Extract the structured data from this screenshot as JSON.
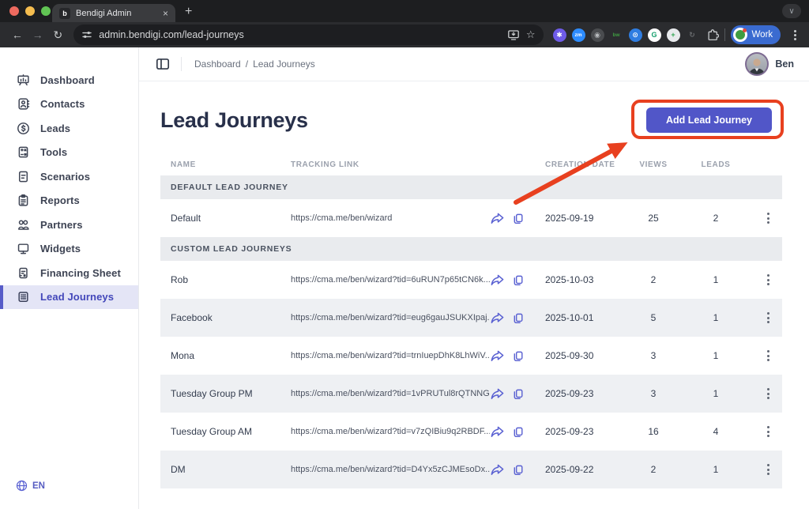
{
  "browser": {
    "tab": {
      "favicon_letter": "b",
      "title": "Bendigi Admin"
    },
    "url": "admin.bendigi.com/lead-journeys",
    "profile_label": "Work",
    "extensions": [
      {
        "name": "settings-ext-icon",
        "glyph": "✱",
        "bg": "#6e5be8",
        "fg": "#ffffff"
      },
      {
        "name": "zoom-ext-icon",
        "glyph": "zm",
        "bg": "#2d8cff",
        "fg": "#ffffff"
      },
      {
        "name": "camera-ext-icon",
        "glyph": "◉",
        "bg": "#4a4c4f",
        "fg": "#b6b9bc"
      },
      {
        "name": "bitwarden-ext-icon",
        "glyph": "bw",
        "bg": "transparent",
        "fg": "#3f9d42"
      },
      {
        "name": "onepassword-ext-icon",
        "glyph": "⊙",
        "bg": "#2f7de1",
        "fg": "#ffffff"
      },
      {
        "name": "grammarly-ext-icon",
        "glyph": "G",
        "bg": "#ffffff",
        "fg": "#15a06e"
      },
      {
        "name": "drive-folder-ext-icon",
        "glyph": "+",
        "bg": "#e8eaed",
        "fg": "#2da44e"
      },
      {
        "name": "recycle-ext-icon",
        "glyph": "↻",
        "bg": "transparent",
        "fg": "#6a6d70"
      }
    ]
  },
  "header": {
    "breadcrumb_home": "Dashboard",
    "breadcrumb_separator": "/",
    "breadcrumb_current": "Lead Journeys",
    "user_name": "Ben"
  },
  "sidebar": {
    "items": [
      {
        "label": "Dashboard",
        "icon": "dashboard-icon",
        "key": "dashboard",
        "active": false
      },
      {
        "label": "Contacts",
        "icon": "contacts-icon",
        "key": "contacts",
        "active": false
      },
      {
        "label": "Leads",
        "icon": "dollar-circle-icon",
        "key": "leads",
        "active": false
      },
      {
        "label": "Tools",
        "icon": "calculator-icon",
        "key": "tools",
        "active": false
      },
      {
        "label": "Scenarios",
        "icon": "document-icon",
        "key": "scenarios",
        "active": false
      },
      {
        "label": "Reports",
        "icon": "clipboard-icon",
        "key": "reports",
        "active": false
      },
      {
        "label": "Partners",
        "icon": "people-icon",
        "key": "partners",
        "active": false
      },
      {
        "label": "Widgets",
        "icon": "monitor-icon",
        "key": "widgets",
        "active": false
      },
      {
        "label": "Financing Sheet",
        "icon": "sheet-icon",
        "key": "financing",
        "active": false
      },
      {
        "label": "Lead Journeys",
        "icon": "list-card-icon",
        "key": "journeys",
        "active": true
      }
    ],
    "language": "EN"
  },
  "main": {
    "title": "Lead Journeys",
    "add_button_label": "Add Lead Journey"
  },
  "table": {
    "columns": [
      "NAME",
      "TRACKING LINK",
      "CREATION DATE",
      "VIEWS",
      "LEADS"
    ],
    "groups": [
      {
        "label": "DEFAULT LEAD JOURNEY",
        "rows": [
          {
            "name": "Default",
            "link": "https://cma.me/ben/wizard",
            "date": "2025-09-19",
            "views": "25",
            "leads": "2"
          }
        ]
      },
      {
        "label": "CUSTOM LEAD JOURNEYS",
        "rows": [
          {
            "name": "Rob",
            "link": "https://cma.me/ben/wizard?tid=6uRUN7p65tCN6k...",
            "date": "2025-10-03",
            "views": "2",
            "leads": "1"
          },
          {
            "name": "Facebook",
            "link": "https://cma.me/ben/wizard?tid=eug6gauJSUKXIpaj...",
            "date": "2025-10-01",
            "views": "5",
            "leads": "1"
          },
          {
            "name": "Mona",
            "link": "https://cma.me/ben/wizard?tid=trnIuepDhK8LhWiV...",
            "date": "2025-09-30",
            "views": "3",
            "leads": "1"
          },
          {
            "name": "Tuesday Group PM",
            "link": "https://cma.me/ben/wizard?tid=1vPRUTul8rQTNNG...",
            "date": "2025-09-23",
            "views": "3",
            "leads": "1"
          },
          {
            "name": "Tuesday Group AM",
            "link": "https://cma.me/ben/wizard?tid=v7zQIBiu9q2RBDF...",
            "date": "2025-09-23",
            "views": "16",
            "leads": "4"
          },
          {
            "name": "DM",
            "link": "https://cma.me/ben/wizard?tid=D4Yx5zCJMEsoDx...",
            "date": "2025-09-22",
            "views": "2",
            "leads": "1"
          }
        ]
      }
    ]
  },
  "colors": {
    "accent": "#5156c8",
    "annotation_red": "#e8401f",
    "active_item_bg": "#e4e5f6",
    "group_row_bg": "#e9ebee",
    "striped_row_bg": "#eef0f3"
  }
}
